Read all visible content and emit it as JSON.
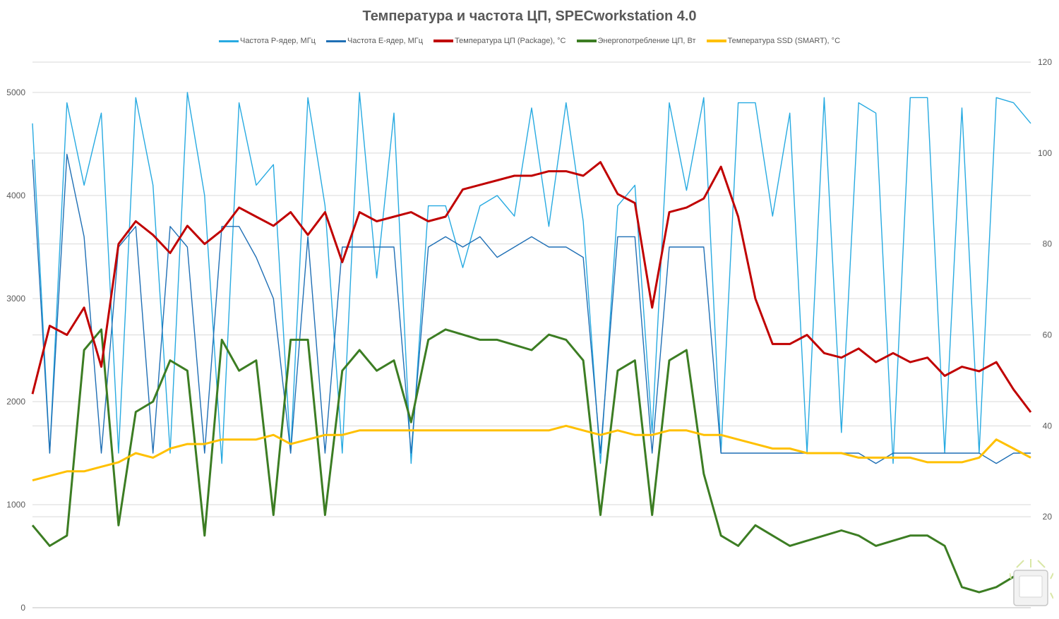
{
  "chart_data": {
    "type": "line",
    "title": "Температура и частота ЦП, SPECworkstation 4.0",
    "y_left": {
      "min": 0,
      "max": 5000,
      "ticks": [
        "0",
        "1000",
        "2000",
        "3000",
        "4000",
        "5000"
      ]
    },
    "y_right": {
      "min": 0,
      "max": 120,
      "ticks": [
        "20",
        "40",
        "60",
        "80",
        "100",
        "120"
      ]
    },
    "grid": true,
    "legend_position": "top",
    "series": [
      {
        "name": "Частота P-ядер, МГц",
        "color": "#27AAE1",
        "axis": "left",
        "values": [
          4700,
          1500,
          4900,
          4100,
          4800,
          1500,
          4950,
          4100,
          1500,
          5000,
          4000,
          1400,
          4900,
          4100,
          4300,
          1500,
          4950,
          3900,
          1500,
          5000,
          3200,
          4800,
          1400,
          3900,
          3900,
          3300,
          3900,
          4000,
          3800,
          4850,
          3700,
          4900,
          3750,
          1400,
          3900,
          4100,
          1700,
          4900,
          4050,
          4950,
          1500,
          4900,
          4900,
          3800,
          4800,
          1500,
          4950,
          1700,
          4900,
          4800,
          1400,
          4950,
          4950,
          1500,
          4850,
          1500,
          4950,
          4900,
          4700
        ]
      },
      {
        "name": "Частота E-ядер, МГц",
        "color": "#1F6FB5",
        "axis": "left",
        "values": [
          4350,
          1500,
          4400,
          3600,
          1500,
          3500,
          3700,
          1500,
          3700,
          3500,
          1500,
          3700,
          3700,
          3400,
          3000,
          1500,
          3600,
          1500,
          3500,
          3500,
          3500,
          3500,
          1500,
          3500,
          3600,
          3500,
          3600,
          3400,
          3500,
          3600,
          3500,
          3500,
          3400,
          1500,
          3600,
          3600,
          1500,
          3500,
          3500,
          3500,
          1500,
          1500,
          1500,
          1500,
          1500,
          1500,
          1500,
          1500,
          1500,
          1400,
          1500,
          1500,
          1500,
          1500,
          1500,
          1500,
          1400,
          1500,
          1500
        ]
      },
      {
        "name": "Температура ЦП (Package), °C",
        "color": "#C00000",
        "axis": "right",
        "values": [
          47,
          62,
          60,
          66,
          53,
          80,
          85,
          82,
          78,
          84,
          80,
          83,
          88,
          86,
          84,
          87,
          82,
          87,
          76,
          87,
          85,
          86,
          87,
          85,
          86,
          92,
          93,
          94,
          95,
          95,
          96,
          96,
          95,
          98,
          91,
          89,
          66,
          87,
          88,
          90,
          97,
          86,
          68,
          58,
          58,
          60,
          56,
          55,
          57,
          54,
          56,
          54,
          55,
          51,
          53,
          52,
          54,
          48,
          43
        ]
      },
      {
        "name": "Энергопотребление ЦП, Вт",
        "color": "#3C7D23",
        "axis": "left",
        "values": [
          800,
          600,
          700,
          2500,
          2700,
          800,
          1900,
          2000,
          2400,
          2300,
          700,
          2600,
          2300,
          2400,
          900,
          2600,
          2600,
          900,
          2300,
          2500,
          2300,
          2400,
          1800,
          2600,
          2700,
          2650,
          2600,
          2600,
          2550,
          2500,
          2650,
          2600,
          2400,
          900,
          2300,
          2400,
          900,
          2400,
          2500,
          1300,
          700,
          600,
          800,
          700,
          600,
          650,
          700,
          750,
          700,
          600,
          650,
          700,
          700,
          600,
          200,
          150,
          200,
          300,
          100
        ]
      },
      {
        "name": "Температура SSD (SMART), °C",
        "color": "#FFC000",
        "axis": "right",
        "values": [
          28,
          29,
          30,
          30,
          31,
          32,
          34,
          33,
          35,
          36,
          36,
          37,
          37,
          37,
          38,
          36,
          37,
          38,
          38,
          39,
          39,
          39,
          39,
          39,
          39,
          39,
          39,
          39,
          39,
          39,
          39,
          40,
          39,
          38,
          39,
          38,
          38,
          39,
          39,
          38,
          38,
          37,
          36,
          35,
          35,
          34,
          34,
          34,
          33,
          33,
          33,
          33,
          32,
          32,
          32,
          33,
          37,
          35,
          33
        ]
      }
    ]
  }
}
